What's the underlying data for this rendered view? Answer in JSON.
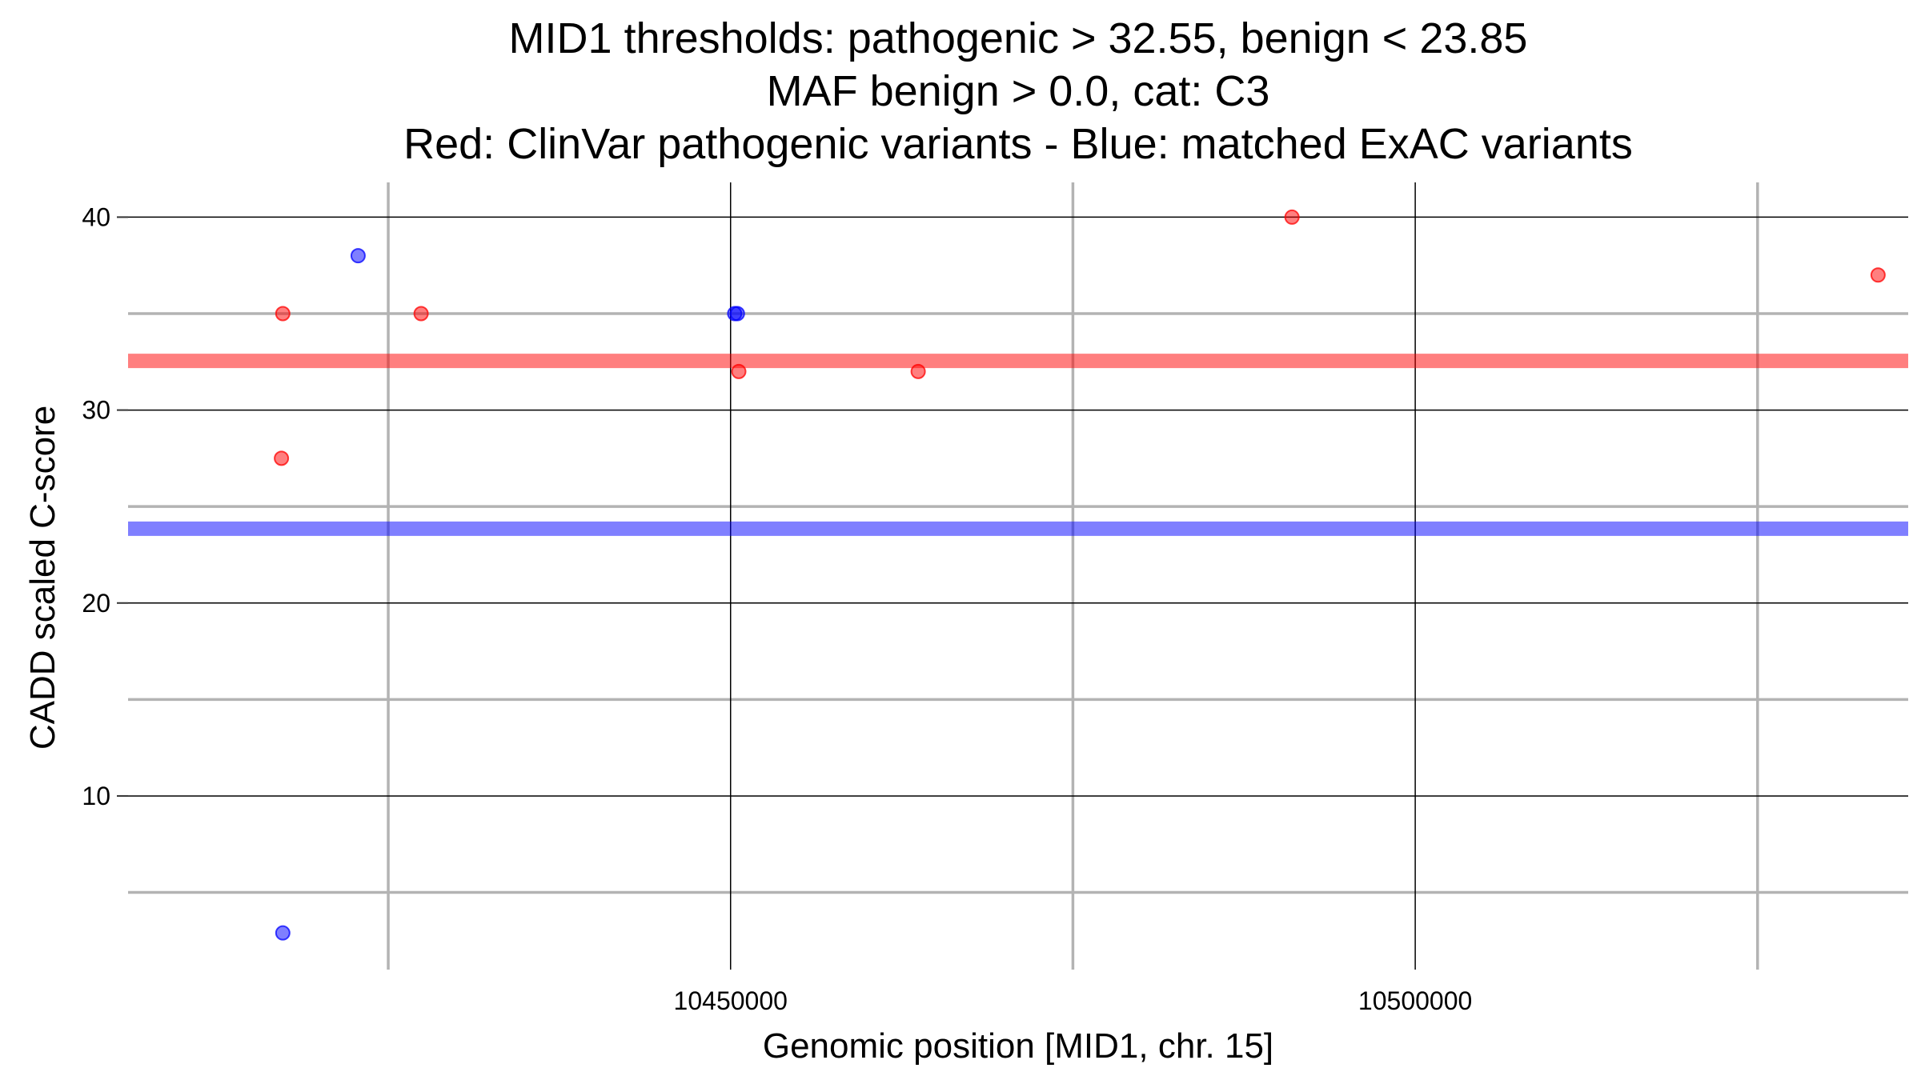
{
  "chart_data": {
    "type": "scatter",
    "title_lines": [
      "MID1 thresholds: pathogenic > 32.55, benign < 23.85",
      "MAF benign > 0.0, cat: C3",
      "Red: ClinVar pathogenic variants - Blue: matched ExAC variants"
    ],
    "xlabel": "Genomic position [MID1, chr. 15]",
    "ylabel": "CADD scaled C-score",
    "xlim": [
      10406000,
      10536000
    ],
    "ylim": [
      1.0,
      41.8
    ],
    "x_major_ticks": [
      10450000,
      10500000
    ],
    "x_minor_ticks": [
      10425000,
      10475000,
      10525000
    ],
    "y_major_ticks": [
      10,
      20,
      30,
      40
    ],
    "y_minor_ticks": [
      5,
      15,
      25,
      35
    ],
    "grid": true,
    "thresholds": [
      {
        "value": 32.55,
        "color": "#ff0000",
        "opacity": 0.5
      },
      {
        "value": 23.85,
        "color": "#0000ff",
        "opacity": 0.5
      }
    ],
    "series": [
      {
        "color": "#ff0000",
        "points": [
          {
            "x": 10417300,
            "y": 35
          },
          {
            "x": 10417200,
            "y": 27.5
          },
          {
            "x": 10427400,
            "y": 35
          },
          {
            "x": 10450600,
            "y": 32
          },
          {
            "x": 10463700,
            "y": 32
          },
          {
            "x": 10491000,
            "y": 40
          },
          {
            "x": 10533800,
            "y": 37
          }
        ]
      },
      {
        "color": "#0000ff",
        "points": [
          {
            "x": 10422800,
            "y": 38
          },
          {
            "x": 10450300,
            "y": 35
          },
          {
            "x": 10450500,
            "y": 35
          },
          {
            "x": 10417300,
            "y": 2.9
          }
        ]
      }
    ]
  }
}
